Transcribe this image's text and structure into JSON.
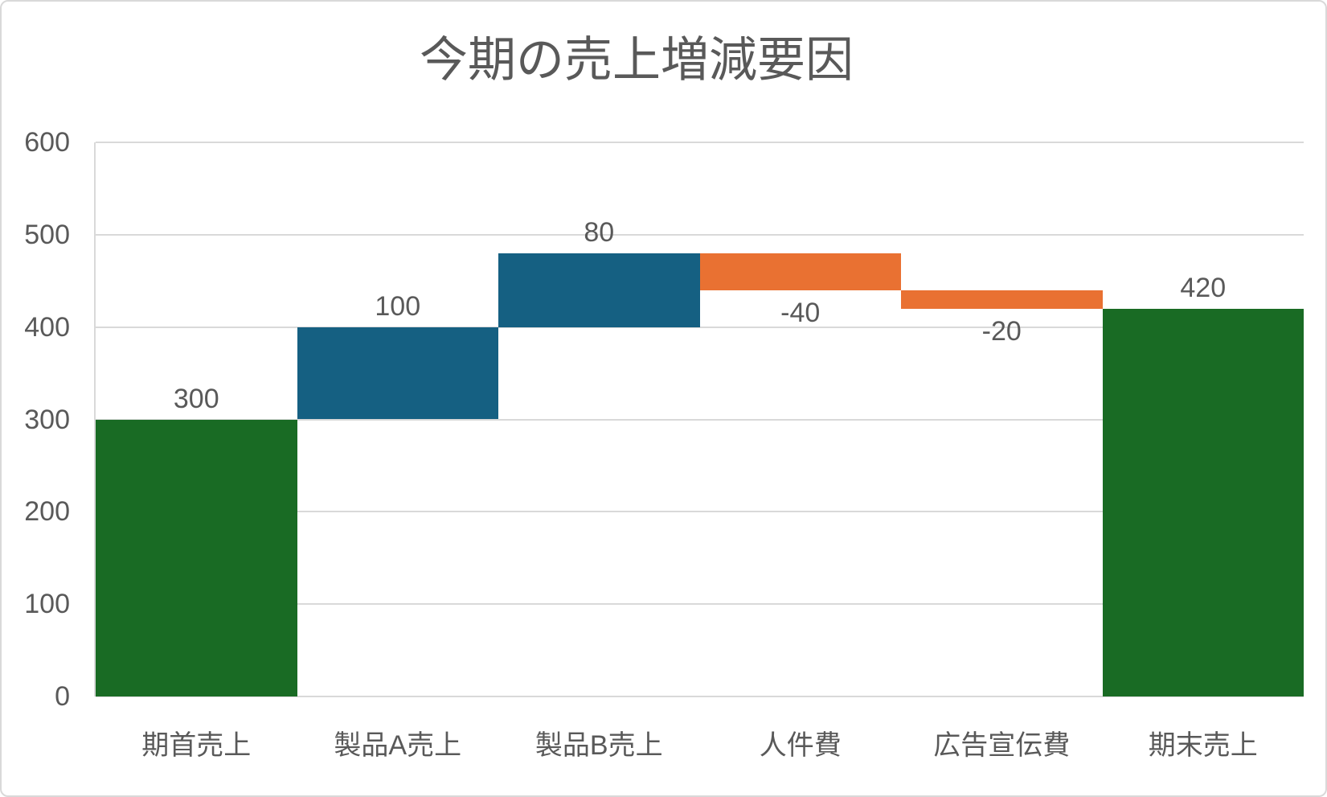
{
  "chart_data": {
    "type": "bar",
    "subtype": "waterfall",
    "title": "今期の売上増減要因",
    "categories": [
      "期首売上",
      "製品A売上",
      "製品B売上",
      "人件費",
      "広告宣伝費",
      "期末売上"
    ],
    "values": [
      300,
      100,
      80,
      -40,
      -20,
      420
    ],
    "bar_types": [
      "total",
      "increase",
      "increase",
      "decrease",
      "decrease",
      "total"
    ],
    "data_labels": [
      "300",
      "100",
      "80",
      "-40",
      "-20",
      "420"
    ],
    "xlabel": "",
    "ylabel": "",
    "ylim": [
      0,
      600
    ],
    "ytick_step": 100,
    "ytick_labels": [
      "0",
      "100",
      "200",
      "300",
      "400",
      "500",
      "600"
    ],
    "grid": true,
    "legend": false,
    "gap_width_percent": 0,
    "colors": {
      "total": "#196B24",
      "increase": "#156082",
      "decrease": "#E97132",
      "text": "#595959",
      "gridline": "#D9D9D9",
      "background": "#FFFFFF",
      "border": "#D9D9D9"
    }
  }
}
